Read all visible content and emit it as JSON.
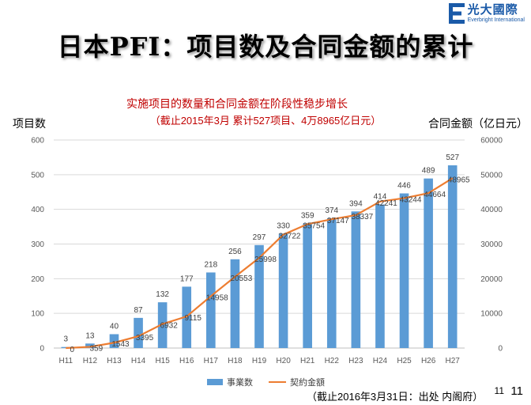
{
  "header": {
    "logo_cn": "光大國際",
    "logo_en": "Everbright International",
    "logo_color": "#1a5aa8",
    "title": "日本PFI：项目数及合同金额的累计"
  },
  "chart_data": {
    "type": "bar+line",
    "title": "实施项目的数量和合同金额在阶段性稳步增长",
    "subtitle": "（截止2015年3月 累计527项目、4万8965亿日元）",
    "ylabel_left": "项目数",
    "ylabel_right": "合同金额（亿日元）",
    "categories": [
      "H11",
      "H12",
      "H13",
      "H14",
      "H15",
      "H16",
      "H17",
      "H18",
      "H19",
      "H20",
      "H21",
      "H22",
      "H23",
      "H24",
      "H25",
      "H26",
      "H27"
    ],
    "ylim_left": [
      0,
      600
    ],
    "yticks_left": [
      0,
      100,
      200,
      300,
      400,
      500,
      600
    ],
    "ylim_right": [
      0,
      60000
    ],
    "yticks_right": [
      0,
      10000,
      20000,
      30000,
      40000,
      50000,
      60000
    ],
    "series": [
      {
        "name": "事業数",
        "type": "bar",
        "axis": "left",
        "color": "#5b9bd5",
        "values": [
          3,
          13,
          40,
          87,
          132,
          177,
          218,
          256,
          297,
          330,
          359,
          374,
          394,
          414,
          446,
          489,
          527
        ]
      },
      {
        "name": "契約金額",
        "type": "line",
        "axis": "right",
        "color": "#ed7d31",
        "values": [
          0,
          359,
          1543,
          3395,
          6932,
          9115,
          14958,
          20553,
          25998,
          32722,
          35754,
          37147,
          38337,
          42241,
          43244,
          44664,
          48965
        ]
      }
    ],
    "legend": "bottom",
    "grid": true
  },
  "footer": {
    "source": "（截止2016年3月31日：出处 内阁府）",
    "page_small": "11",
    "page": "11"
  }
}
